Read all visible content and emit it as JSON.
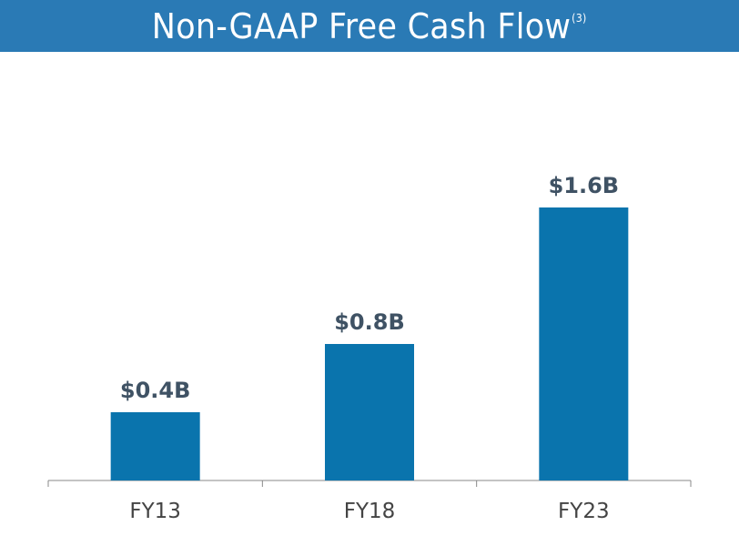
{
  "header": {
    "title": "Non-GAAP Free Cash Flow",
    "footnote": "(3)"
  },
  "colors": {
    "header_bg": "#2a7ab5",
    "bar": "#0a74ad",
    "value_text": "#3f5264",
    "axis": "#888888"
  },
  "chart_data": {
    "type": "bar",
    "title": "Non-GAAP Free Cash Flow",
    "categories": [
      "FY13",
      "FY18",
      "FY23"
    ],
    "values": [
      0.4,
      0.8,
      1.6
    ],
    "value_labels": [
      "$0.4B",
      "$0.8B",
      "$1.6B"
    ],
    "unit": "$B",
    "xlabel": "",
    "ylabel": "",
    "ylim": [
      0,
      1.8
    ],
    "grid": false,
    "legend": "none"
  }
}
